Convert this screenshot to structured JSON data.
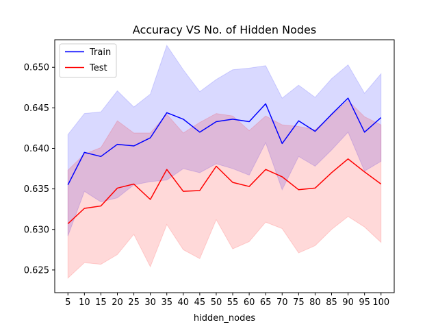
{
  "chart_data": {
    "type": "line",
    "title": "Accuracy VS No. of Hidden Nodes",
    "xlabel": "hidden_nodes",
    "ylabel": "",
    "x": [
      5,
      10,
      15,
      20,
      25,
      30,
      35,
      40,
      45,
      50,
      55,
      60,
      65,
      70,
      75,
      80,
      85,
      90,
      95,
      100
    ],
    "xlim": [
      1,
      104
    ],
    "ylim": [
      0.6222,
      0.6534
    ],
    "yticks": [
      0.625,
      0.63,
      0.635,
      0.64,
      0.645,
      0.65
    ],
    "ytick_labels": [
      "0.625",
      "0.630",
      "0.635",
      "0.640",
      "0.645",
      "0.650"
    ],
    "grid": false,
    "legend": {
      "position": "top-left"
    },
    "series": [
      {
        "name": "Train",
        "color": "#0000ff",
        "band_color": "#0000ff",
        "values": [
          0.6355,
          0.6395,
          0.639,
          0.6405,
          0.6403,
          0.6413,
          0.6444,
          0.6436,
          0.642,
          0.6433,
          0.6436,
          0.6433,
          0.6455,
          0.6406,
          0.6434,
          0.6421,
          0.6442,
          0.6462,
          0.642,
          0.6438
        ],
        "upper": [
          0.6417,
          0.6443,
          0.6445,
          0.6471,
          0.6451,
          0.6467,
          0.6527,
          0.6497,
          0.647,
          0.6485,
          0.6497,
          0.6499,
          0.6502,
          0.6462,
          0.6478,
          0.6463,
          0.6486,
          0.6503,
          0.6468,
          0.6492
        ],
        "lower": [
          0.6292,
          0.6347,
          0.6334,
          0.6339,
          0.6355,
          0.6359,
          0.6361,
          0.6375,
          0.637,
          0.6381,
          0.6375,
          0.6367,
          0.6407,
          0.6349,
          0.639,
          0.6378,
          0.6398,
          0.642,
          0.6372,
          0.6384
        ]
      },
      {
        "name": "Test",
        "color": "#ff0000",
        "band_color": "#ff0000",
        "values": [
          0.6307,
          0.6326,
          0.6329,
          0.6351,
          0.6356,
          0.6337,
          0.6374,
          0.6347,
          0.6348,
          0.6378,
          0.6358,
          0.6353,
          0.6374,
          0.6365,
          0.6349,
          0.6351,
          0.637,
          0.6387,
          0.6371,
          0.6356
        ],
        "upper": [
          0.6373,
          0.6393,
          0.6401,
          0.6434,
          0.6419,
          0.6419,
          0.6442,
          0.6419,
          0.6432,
          0.6443,
          0.644,
          0.6422,
          0.644,
          0.6429,
          0.6427,
          0.6423,
          0.6441,
          0.6459,
          0.6439,
          0.6429
        ],
        "lower": [
          0.624,
          0.6259,
          0.6257,
          0.6269,
          0.6294,
          0.6254,
          0.6306,
          0.6275,
          0.6264,
          0.6312,
          0.6276,
          0.6285,
          0.6309,
          0.6301,
          0.6271,
          0.628,
          0.63,
          0.6316,
          0.6303,
          0.6284
        ]
      }
    ]
  }
}
